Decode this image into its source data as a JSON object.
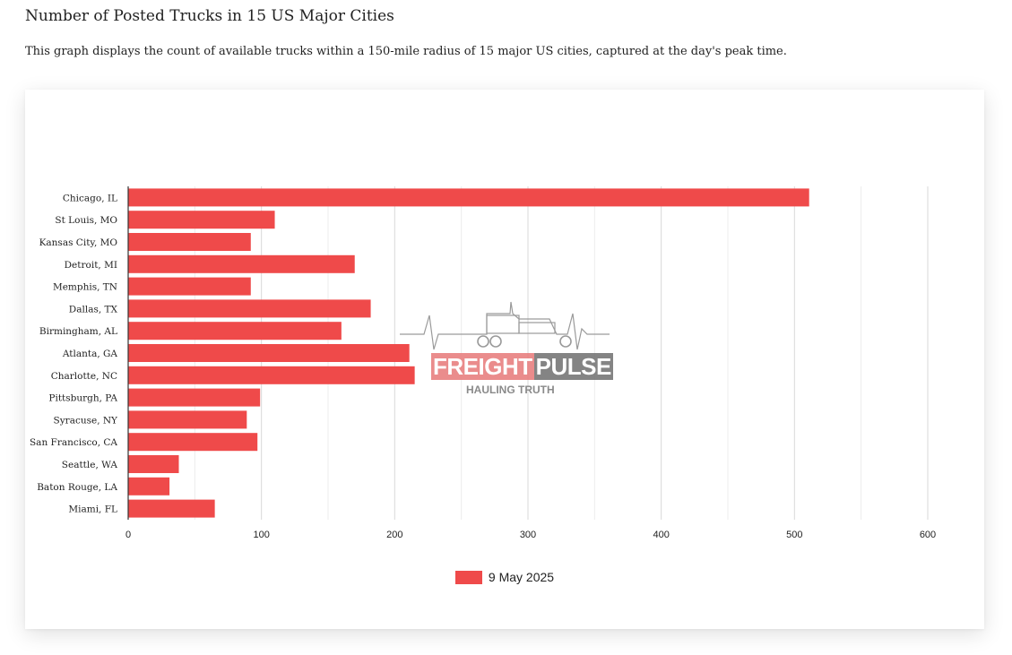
{
  "page": {
    "title": "Number of Posted Trucks in 15 US Major Cities",
    "description": "This graph displays the count of available trucks within a 150-mile radius of 15 major US cities, captured at the day's peak time."
  },
  "watermark": {
    "brand_word_1": "FREIGHT",
    "brand_word_2": "PULSE",
    "tagline": "HAULING TRUTH"
  },
  "colors": {
    "bar": "#ef4a4a",
    "grid": "#d9d9d9",
    "axis": "#333333",
    "text": "#222222"
  },
  "chart_data": {
    "type": "bar",
    "orientation": "horizontal",
    "title": "",
    "xlabel": "",
    "ylabel": "",
    "categories": [
      "Chicago, IL",
      "St Louis, MO",
      "Kansas City, MO",
      "Detroit, MI",
      "Memphis, TN",
      "Dallas, TX",
      "Birmingham, AL",
      "Atlanta, GA",
      "Charlotte, NC",
      "Pittsburgh, PA",
      "Syracuse, NY",
      "San Francisco, CA",
      "Seattle, WA",
      "Baton Rouge, LA",
      "Miami, FL"
    ],
    "series": [
      {
        "name": "9 May 2025",
        "color": "#ef4a4a",
        "values": [
          511,
          110,
          92,
          170,
          92,
          182,
          160,
          211,
          215,
          99,
          89,
          97,
          38,
          31,
          65
        ]
      }
    ],
    "xlim": [
      0,
      600
    ],
    "x_ticks": [
      0,
      100,
      200,
      300,
      400,
      500,
      600
    ],
    "grid": true,
    "legend_position": "bottom"
  }
}
